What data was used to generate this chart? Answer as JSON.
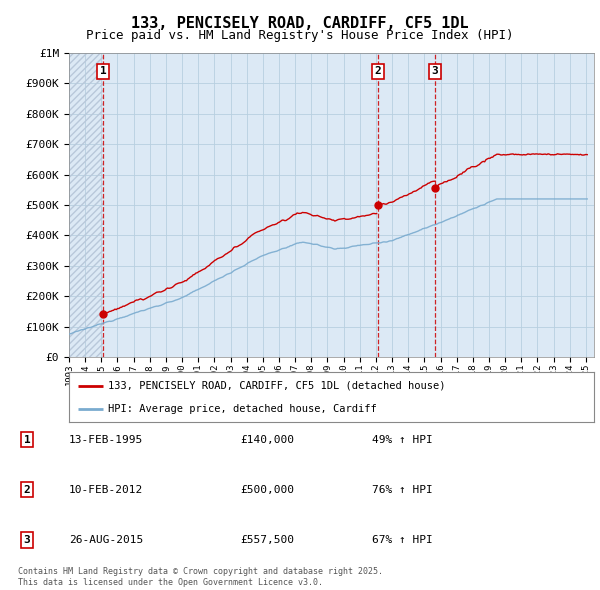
{
  "title": "133, PENCISELY ROAD, CARDIFF, CF5 1DL",
  "subtitle": "Price paid vs. HM Land Registry's House Price Index (HPI)",
  "background_color": "#dce9f5",
  "plot_bg_color": "#dce9f5",
  "hatch_color": "#b8c8da",
  "grid_color": "#b8cfe0",
  "ylim": [
    0,
    1000000
  ],
  "yticks": [
    0,
    100000,
    200000,
    300000,
    400000,
    500000,
    600000,
    700000,
    800000,
    900000,
    1000000
  ],
  "ytick_labels": [
    "£0",
    "£100K",
    "£200K",
    "£300K",
    "£400K",
    "£500K",
    "£600K",
    "£700K",
    "£800K",
    "£900K",
    "£1M"
  ],
  "xlim_start": 1993.0,
  "xlim_end": 2025.5,
  "sale_dates": [
    1995.12,
    2012.12,
    2015.65
  ],
  "sale_prices": [
    140000,
    500000,
    557500
  ],
  "sale_labels": [
    "1",
    "2",
    "3"
  ],
  "legend_line1": "133, PENCISELY ROAD, CARDIFF, CF5 1DL (detached house)",
  "legend_line2": "HPI: Average price, detached house, Cardiff",
  "table_rows": [
    [
      "1",
      "13-FEB-1995",
      "£140,000",
      "49% ↑ HPI"
    ],
    [
      "2",
      "10-FEB-2012",
      "£500,000",
      "76% ↑ HPI"
    ],
    [
      "3",
      "26-AUG-2015",
      "£557,500",
      "67% ↑ HPI"
    ]
  ],
  "footnote": "Contains HM Land Registry data © Crown copyright and database right 2025.\nThis data is licensed under the Open Government Licence v3.0.",
  "red_line_color": "#cc0000",
  "blue_line_color": "#7aabcf",
  "title_fontsize": 11,
  "subtitle_fontsize": 9
}
